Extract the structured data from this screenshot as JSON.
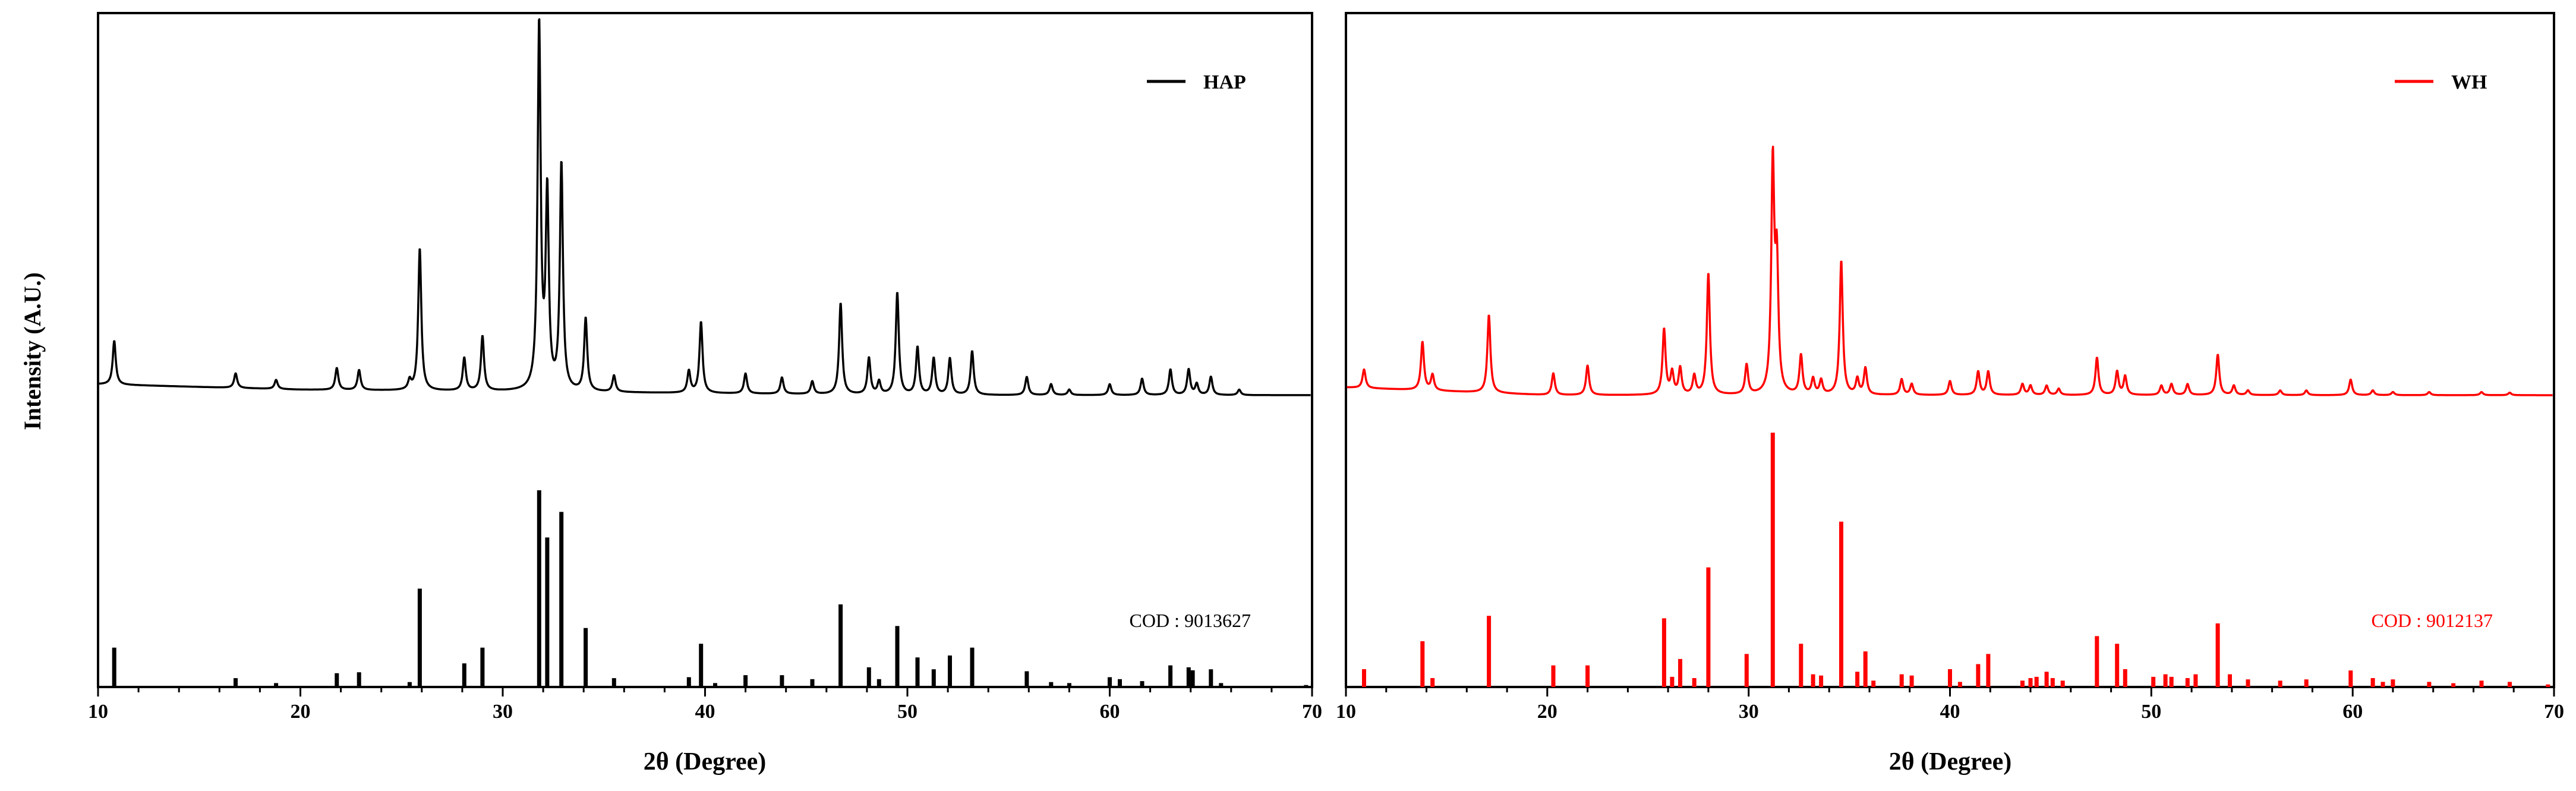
{
  "ylabel": "Intensity (A.U.)",
  "panels": [
    {
      "xlabel": "2θ (Degree)",
      "legend": "HAP",
      "color": "#000000",
      "reference": "COD : 9013627"
    },
    {
      "xlabel": "2θ (Degree)",
      "legend": "WH",
      "color": "#ff0000",
      "reference": "COD : 9012137"
    }
  ],
  "chart_data": [
    {
      "type": "line",
      "xlabel": "2θ (Degree)",
      "ylabel": "Intensity (A.U.)",
      "xlim": [
        10,
        70
      ],
      "xticks": [
        10,
        20,
        30,
        40,
        50,
        60,
        70
      ],
      "ytick_labels": false,
      "grid": false,
      "legend_position": "top-right",
      "series": [
        {
          "name": "HAP",
          "color": "#000000",
          "baseline": [
            [
              10,
              0.03
            ],
            [
              20,
              0.015
            ],
            [
              30,
              0.01
            ],
            [
              40,
              0.005
            ],
            [
              50,
              0.0
            ],
            [
              60,
              0.0
            ],
            [
              70,
              0.0
            ]
          ],
          "peaks": [
            [
              10.8,
              0.12
            ],
            [
              16.8,
              0.04
            ],
            [
              18.8,
              0.025
            ],
            [
              21.8,
              0.06
            ],
            [
              22.9,
              0.055
            ],
            [
              25.4,
              0.025
            ],
            [
              25.9,
              0.39
            ],
            [
              28.1,
              0.09
            ],
            [
              29.0,
              0.15
            ],
            [
              31.8,
              1.0
            ],
            [
              32.2,
              0.53
            ],
            [
              32.9,
              0.62
            ],
            [
              34.1,
              0.2
            ],
            [
              35.5,
              0.045
            ],
            [
              39.2,
              0.06
            ],
            [
              39.8,
              0.195
            ],
            [
              42.0,
              0.055
            ],
            [
              43.8,
              0.045
            ],
            [
              45.3,
              0.035
            ],
            [
              46.7,
              0.25
            ],
            [
              48.1,
              0.1
            ],
            [
              48.6,
              0.035
            ],
            [
              49.5,
              0.28
            ],
            [
              50.5,
              0.13
            ],
            [
              51.3,
              0.1
            ],
            [
              52.1,
              0.1
            ],
            [
              53.2,
              0.12
            ],
            [
              55.9,
              0.05
            ],
            [
              57.1,
              0.03
            ],
            [
              58.0,
              0.015
            ],
            [
              60.0,
              0.03
            ],
            [
              61.6,
              0.045
            ],
            [
              63.0,
              0.07
            ],
            [
              63.9,
              0.07
            ],
            [
              64.3,
              0.03
            ],
            [
              65.0,
              0.05
            ],
            [
              66.4,
              0.015
            ]
          ]
        },
        {
          "name": "COD : 9013627",
          "color": "#000000",
          "sticks": [
            [
              10.8,
              0.2
            ],
            [
              16.8,
              0.045
            ],
            [
              18.8,
              0.02
            ],
            [
              21.8,
              0.07
            ],
            [
              22.9,
              0.075
            ],
            [
              25.4,
              0.025
            ],
            [
              25.9,
              0.5
            ],
            [
              28.1,
              0.12
            ],
            [
              29.0,
              0.2
            ],
            [
              31.8,
              1.0
            ],
            [
              32.2,
              0.76
            ],
            [
              32.9,
              0.89
            ],
            [
              34.1,
              0.3
            ],
            [
              35.5,
              0.045
            ],
            [
              39.2,
              0.05
            ],
            [
              39.8,
              0.22
            ],
            [
              40.5,
              0.02
            ],
            [
              42.0,
              0.06
            ],
            [
              43.8,
              0.06
            ],
            [
              45.3,
              0.04
            ],
            [
              46.7,
              0.42
            ],
            [
              48.1,
              0.1
            ],
            [
              48.6,
              0.04
            ],
            [
              49.5,
              0.31
            ],
            [
              50.5,
              0.15
            ],
            [
              51.3,
              0.09
            ],
            [
              52.1,
              0.16
            ],
            [
              53.2,
              0.2
            ],
            [
              55.9,
              0.08
            ],
            [
              57.1,
              0.025
            ],
            [
              58.0,
              0.02
            ],
            [
              60.0,
              0.05
            ],
            [
              60.5,
              0.04
            ],
            [
              61.6,
              0.03
            ],
            [
              63.0,
              0.11
            ],
            [
              63.9,
              0.1
            ],
            [
              64.1,
              0.085
            ],
            [
              65.0,
              0.09
            ],
            [
              65.5,
              0.02
            ],
            [
              69.7,
              0.01
            ]
          ]
        }
      ]
    },
    {
      "type": "line",
      "xlabel": "2θ (Degree)",
      "ylabel": "Intensity (A.U.)",
      "xlim": [
        10,
        70
      ],
      "xticks": [
        10,
        20,
        30,
        40,
        50,
        60,
        70
      ],
      "ytick_labels": false,
      "grid": false,
      "legend_position": "top-right",
      "series": [
        {
          "name": "WH",
          "color": "#ff0000",
          "baseline": [
            [
              10,
              0.025
            ],
            [
              20,
              0.0
            ],
            [
              30,
              0.0
            ],
            [
              40,
              0.0
            ],
            [
              50,
              0.0
            ],
            [
              60,
              0.0
            ],
            [
              70,
              0.0
            ]
          ],
          "peaks": [
            [
              10.9,
              0.06
            ],
            [
              13.8,
              0.155
            ],
            [
              14.3,
              0.05
            ],
            [
              17.1,
              0.25
            ],
            [
              20.3,
              0.07
            ],
            [
              22.0,
              0.095
            ],
            [
              25.8,
              0.21
            ],
            [
              26.2,
              0.07
            ],
            [
              26.6,
              0.085
            ],
            [
              27.3,
              0.06
            ],
            [
              28.0,
              0.39
            ],
            [
              29.9,
              0.095
            ],
            [
              31.2,
              0.73
            ],
            [
              31.4,
              0.4
            ],
            [
              32.6,
              0.125
            ],
            [
              33.2,
              0.05
            ],
            [
              33.6,
              0.045
            ],
            [
              34.6,
              0.43
            ],
            [
              35.4,
              0.05
            ],
            [
              35.8,
              0.085
            ],
            [
              37.6,
              0.05
            ],
            [
              38.1,
              0.035
            ],
            [
              40.0,
              0.045
            ],
            [
              41.4,
              0.075
            ],
            [
              41.9,
              0.075
            ],
            [
              43.6,
              0.035
            ],
            [
              44.0,
              0.03
            ],
            [
              44.8,
              0.03
            ],
            [
              45.4,
              0.02
            ],
            [
              47.3,
              0.12
            ],
            [
              48.3,
              0.075
            ],
            [
              48.7,
              0.06
            ],
            [
              50.5,
              0.03
            ],
            [
              51.0,
              0.035
            ],
            [
              51.8,
              0.035
            ],
            [
              53.3,
              0.13
            ],
            [
              54.1,
              0.03
            ],
            [
              54.8,
              0.015
            ],
            [
              56.4,
              0.015
            ],
            [
              57.7,
              0.015
            ],
            [
              59.9,
              0.05
            ],
            [
              61.0,
              0.015
            ],
            [
              62.0,
              0.01
            ],
            [
              63.8,
              0.01
            ],
            [
              66.4,
              0.01
            ],
            [
              67.8,
              0.008
            ]
          ]
        },
        {
          "name": "COD : 9012137",
          "color": "#ff0000",
          "sticks": [
            [
              10.9,
              0.07
            ],
            [
              13.8,
              0.18
            ],
            [
              14.3,
              0.035
            ],
            [
              17.1,
              0.28
            ],
            [
              20.3,
              0.085
            ],
            [
              22.0,
              0.085
            ],
            [
              25.8,
              0.27
            ],
            [
              26.2,
              0.04
            ],
            [
              26.6,
              0.11
            ],
            [
              27.3,
              0.035
            ],
            [
              28.0,
              0.47
            ],
            [
              29.9,
              0.13
            ],
            [
              31.2,
              1.0
            ],
            [
              32.6,
              0.17
            ],
            [
              33.2,
              0.05
            ],
            [
              33.6,
              0.045
            ],
            [
              34.6,
              0.65
            ],
            [
              35.4,
              0.06
            ],
            [
              35.8,
              0.14
            ],
            [
              36.2,
              0.025
            ],
            [
              37.6,
              0.05
            ],
            [
              38.1,
              0.045
            ],
            [
              40.0,
              0.07
            ],
            [
              40.5,
              0.02
            ],
            [
              41.4,
              0.09
            ],
            [
              41.9,
              0.13
            ],
            [
              43.6,
              0.025
            ],
            [
              44.0,
              0.035
            ],
            [
              44.3,
              0.04
            ],
            [
              44.8,
              0.06
            ],
            [
              45.1,
              0.035
            ],
            [
              45.6,
              0.025
            ],
            [
              47.3,
              0.2
            ],
            [
              48.3,
              0.17
            ],
            [
              48.7,
              0.07
            ],
            [
              50.1,
              0.04
            ],
            [
              50.7,
              0.05
            ],
            [
              51.0,
              0.04
            ],
            [
              51.8,
              0.035
            ],
            [
              52.2,
              0.05
            ],
            [
              53.3,
              0.25
            ],
            [
              53.9,
              0.05
            ],
            [
              54.8,
              0.03
            ],
            [
              56.4,
              0.025
            ],
            [
              57.7,
              0.03
            ],
            [
              59.9,
              0.065
            ],
            [
              61.0,
              0.035
            ],
            [
              61.5,
              0.02
            ],
            [
              62.0,
              0.03
            ],
            [
              63.8,
              0.02
            ],
            [
              65.0,
              0.015
            ],
            [
              66.4,
              0.025
            ],
            [
              67.8,
              0.02
            ],
            [
              69.7,
              0.01
            ]
          ]
        }
      ]
    }
  ]
}
